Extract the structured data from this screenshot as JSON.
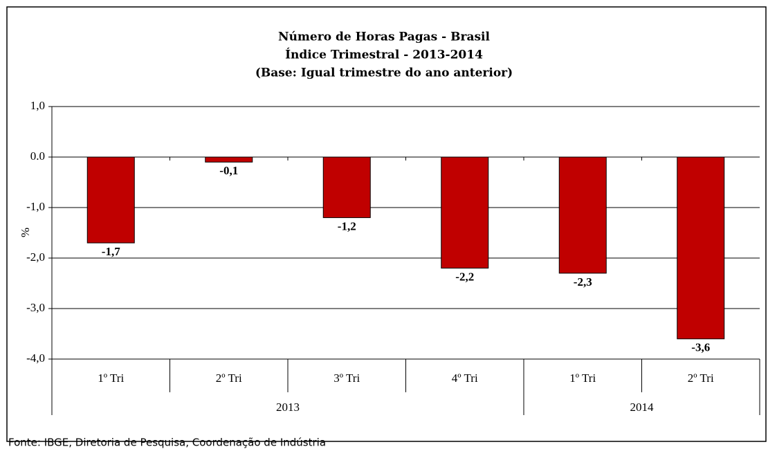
{
  "chart_data": {
    "type": "bar",
    "title": [
      "Número de Horas Pagas - Brasil",
      "Índice Trimestral - 2013-2014",
      "(Base: Igual trimestre do ano anterior)"
    ],
    "y_label": "%",
    "categories": [
      "1º Tri",
      "2º Tri",
      "3º Tri",
      "4º Tri",
      "1º Tri",
      "2º Tri"
    ],
    "groups": [
      {
        "label": "2013",
        "count": 4
      },
      {
        "label": "2014",
        "count": 2
      }
    ],
    "values": [
      -1.7,
      -0.1,
      -1.2,
      -2.2,
      -2.3,
      -3.6
    ],
    "value_labels": [
      "-1,7",
      "-0,1",
      "-1,2",
      "-2,2",
      "-2,3",
      "-3,6"
    ],
    "color": "#c00000",
    "ylim": [
      -4,
      1
    ],
    "yticks": [
      {
        "value": 1,
        "label": "1,0"
      },
      {
        "value": 0,
        "label": "0.0"
      },
      {
        "value": -1,
        "label": "-1,0"
      },
      {
        "value": -2,
        "label": "-2,0"
      },
      {
        "value": -3,
        "label": "-3,0"
      },
      {
        "value": -4,
        "label": "-4,0"
      }
    ],
    "grid": true,
    "source": "Fonte: IBGE, Diretoria de Pesquisa, Coordenação de Indústria"
  }
}
